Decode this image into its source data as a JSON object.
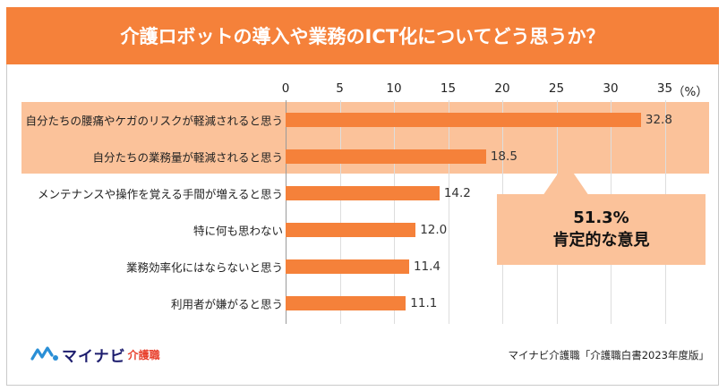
{
  "title": "介護ロボットの導入や業務のICT化についてどう思うか？",
  "chart_data": {
    "type": "bar",
    "orientation": "horizontal",
    "title": "介護ロボットの導入や業務のICT化についてどう思うか？",
    "unit": "（%）",
    "xlim": [
      0,
      35
    ],
    "ticks": [
      0,
      5,
      10,
      15,
      20,
      25,
      30,
      35
    ],
    "grid": true,
    "categories": [
      "自分たちの腰痛やケガのリスクが軽減されると思う",
      "自分たちの業務量が軽減されると思う",
      "メンテナンスや操作を覚える手間が増えると思う",
      "特に何も思わない",
      "業務効率化にはならないと思う",
      "利用者が嫌がると思う"
    ],
    "values": [
      32.8,
      18.5,
      14.2,
      12.0,
      11.4,
      11.1
    ],
    "value_labels": [
      "32.8",
      "18.5",
      "14.2",
      "12.0",
      "11.4",
      "11.1"
    ],
    "highlighted_categories": [
      0,
      1
    ],
    "bar_color": "#f5813a",
    "highlight_color": "#fbc29a"
  },
  "callout": {
    "percent": "51.3%",
    "text": "肯定的な意見"
  },
  "logo": {
    "name": "マイナビ",
    "sub": "介護職"
  },
  "source": "マイナビ介護職「介護職白書2023年度版」"
}
